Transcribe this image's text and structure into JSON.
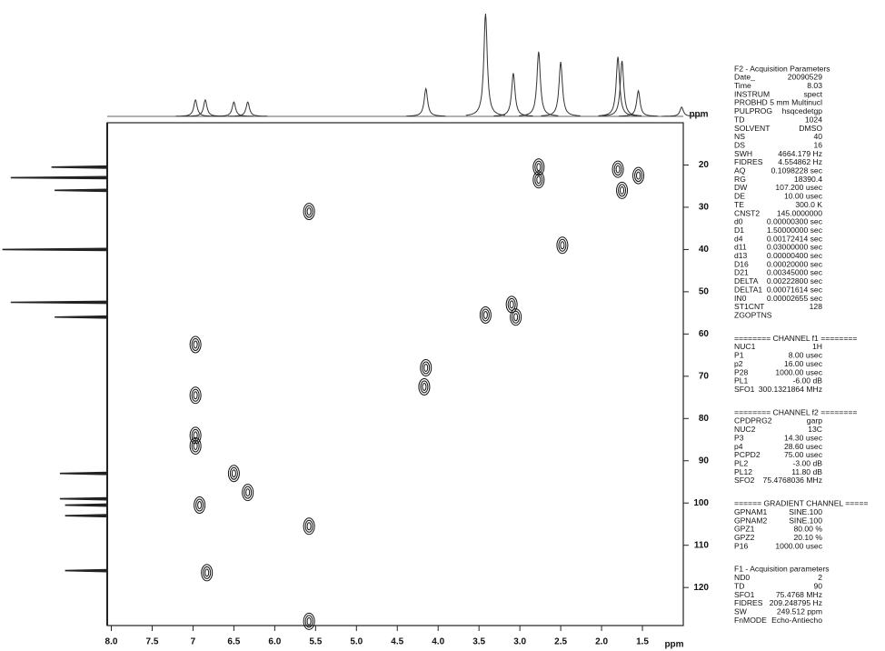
{
  "chart_data": {
    "type": "contour",
    "x_label": "ppm",
    "y_label": "ppm",
    "xlim": [
      8.05,
      1.0
    ],
    "ylim": [
      10,
      129
    ],
    "xticks": [
      {
        "value": 8.0,
        "label": "8.0"
      },
      7.5,
      7,
      6.5,
      {
        "value": 6.0,
        "label": "6.0"
      },
      5.5,
      {
        "value": 5.0,
        "label": "5.0"
      },
      4.5,
      {
        "value": 4.0,
        "label": "4.0"
      },
      3.5,
      {
        "value": 3.0,
        "label": "3.0"
      },
      2.5,
      {
        "value": 2.0,
        "label": "2.0"
      },
      1.5
    ],
    "yticks": [
      20,
      30,
      40,
      50,
      60,
      70,
      80,
      90,
      100,
      110,
      120
    ],
    "color": "#111111",
    "peaks": {
      "x": [
        2.77,
        2.77,
        1.8,
        1.75,
        1.55,
        2.48,
        3.1,
        3.05,
        3.42,
        4.15,
        4.17,
        6.97,
        6.97,
        6.97,
        6.97,
        6.5,
        6.33,
        6.92,
        6.83,
        5.58,
        5.58,
        5.58
      ],
      "y": [
        20.5,
        23.5,
        21,
        26,
        22.5,
        39,
        53,
        56,
        55.5,
        68,
        72.5,
        62.5,
        74.5,
        84,
        86.5,
        93,
        97.5,
        100.5,
        116.5,
        105.5,
        128,
        31
      ]
    },
    "top_trace": {
      "x": [
        6.97,
        6.85,
        6.5,
        6.33,
        4.15,
        3.42,
        3.08,
        2.77,
        2.5,
        1.8,
        1.75,
        1.55,
        1.02
      ],
      "height": [
        16,
        16,
        14,
        14,
        27,
        100,
        42,
        63,
        53,
        58,
        54,
        25,
        9
      ]
    },
    "left_trace": {
      "y": [
        20.5,
        23,
        26,
        40,
        52.5,
        56,
        93,
        99,
        100.5,
        103,
        116
      ],
      "height": [
        53,
        92,
        50,
        100,
        92,
        50,
        45,
        45,
        40,
        40,
        40
      ]
    }
  },
  "parameters": [
    {
      "title": "F2 - Acquisition Parameters",
      "rows": [
        [
          "Date_",
          "20090529"
        ],
        [
          "Time",
          "8.03"
        ],
        [
          "INSTRUM",
          "spect"
        ],
        [
          "PROBHD",
          "5 mm Multinucl"
        ],
        [
          "PULPROG",
          "hsqcedetgp"
        ],
        [
          "TD",
          "1024"
        ],
        [
          "SOLVENT",
          "DMSO"
        ],
        [
          "NS",
          "40"
        ],
        [
          "DS",
          "16"
        ],
        [
          "SWH",
          "4664.179 Hz"
        ],
        [
          "FIDRES",
          "4.554862 Hz"
        ],
        [
          "AQ",
          "0.1098228 sec"
        ],
        [
          "RG",
          "18390.4"
        ],
        [
          "DW",
          "107.200 usec"
        ],
        [
          "DE",
          "10.00 usec"
        ],
        [
          "TE",
          "300.0 K"
        ],
        [
          "CNST2",
          "145.0000000"
        ],
        [
          "d0",
          "0.00000300 sec"
        ],
        [
          "D1",
          "1.50000000 sec"
        ],
        [
          "d4",
          "0.00172414 sec"
        ],
        [
          "d11",
          "0.03000000 sec"
        ],
        [
          "d13",
          "0.00000400 sec"
        ],
        [
          "D16",
          "0.00020000 sec"
        ],
        [
          "D21",
          "0.00345000 sec"
        ],
        [
          "DELTA",
          "0.00222800 sec"
        ],
        [
          "DELTA1",
          "0.00071614 sec"
        ],
        [
          "IN0",
          "0.00002655 sec"
        ],
        [
          "ST1CNT",
          "128"
        ],
        [
          "ZGOPTNS"
        ]
      ]
    },
    {
      "title": "======== CHANNEL f1 ========",
      "rows": [
        [
          "NUC1",
          "1H"
        ],
        [
          "P1",
          "8.00 usec"
        ],
        [
          "p2",
          "16.00 usec"
        ],
        [
          "P28",
          "1000.00 usec"
        ],
        [
          "PL1",
          "-6.00 dB"
        ],
        [
          "SFO1",
          "300.1321864 MHz"
        ]
      ]
    },
    {
      "title": "======== CHANNEL f2 ========",
      "rows": [
        [
          "CPDPRG2",
          "garp"
        ],
        [
          "NUC2",
          "13C"
        ],
        [
          "P3",
          "14.30 usec"
        ],
        [
          "p4",
          "28.60 usec"
        ],
        [
          "PCPD2",
          "75.00 usec"
        ],
        [
          "PL2",
          "-3.00 dB"
        ],
        [
          "PL12",
          "11.80 dB"
        ],
        [
          "SFO2",
          "75.4768036 MHz"
        ]
      ]
    },
    {
      "title": "====== GRADIENT CHANNEL =====",
      "rows": [
        [
          "GPNAM1",
          "SINE.100"
        ],
        [
          "GPNAM2",
          "SINE.100"
        ],
        [
          "GPZ1",
          "80.00 %"
        ],
        [
          "GPZ2",
          "20.10 %"
        ],
        [
          "P16",
          "1000.00 usec"
        ]
      ]
    },
    {
      "title": "F1 - Acquisition parameters",
      "rows": [
        [
          "ND0",
          "2"
        ],
        [
          "TD",
          "90"
        ],
        [
          "SFO1",
          "75.4768 MHz"
        ],
        [
          "FIDRES",
          "209.248795 Hz"
        ],
        [
          "SW",
          "249.512 ppm"
        ],
        [
          "FnMODE",
          "Echo-Antiecho"
        ]
      ]
    }
  ]
}
